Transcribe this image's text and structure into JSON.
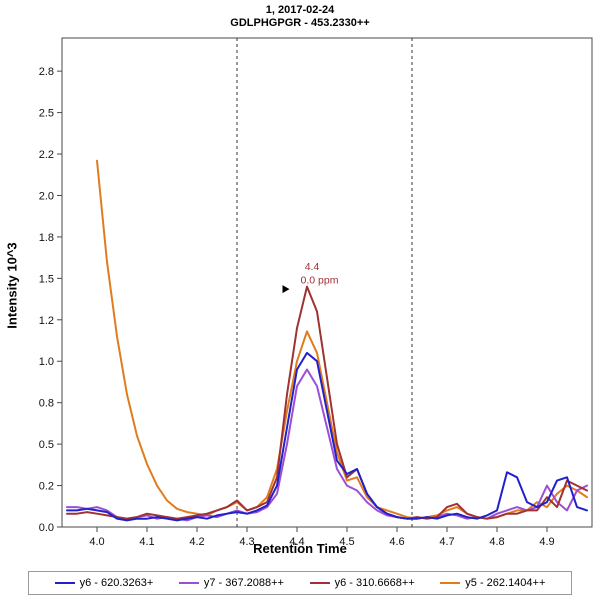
{
  "title_line1": "1, 2017-02-24",
  "title_line2": "GDLPHGPGR - 453.2330++",
  "chart_data": {
    "type": "line",
    "title": "1, 2017-02-24",
    "subtitle": "GDLPHGPGR - 453.2330++",
    "xlabel": "Retention Time",
    "ylabel": "Intensity 10^3",
    "xlim": [
      3.93,
      4.99
    ],
    "ylim": [
      0,
      2.95
    ],
    "grid": false,
    "legend_position": "bottom",
    "x_ticks": {
      "values": [
        4.0,
        4.1,
        4.2,
        4.3,
        4.4,
        4.5,
        4.6,
        4.7,
        4.8,
        4.9
      ],
      "labels": [
        "4.0",
        "4.1",
        "4.2",
        "4.3",
        "4.4",
        "4.5",
        "4.6",
        "4.7",
        "4.8",
        "4.9"
      ]
    },
    "y_ticks": {
      "values": [
        0,
        0.25,
        0.5,
        0.75,
        1.0,
        1.25,
        1.5,
        1.75,
        2.0,
        2.25,
        2.5,
        2.75
      ],
      "labels": [
        "0.0",
        "0.2",
        "0.5",
        "0.8",
        "1.0",
        "1.2",
        "1.5",
        "1.8",
        "2.0",
        "2.2",
        "2.5",
        "2.8"
      ]
    },
    "integration_boundaries": [
      4.28,
      4.63
    ],
    "x": [
      3.94,
      3.96,
      3.98,
      4.0,
      4.02,
      4.04,
      4.06,
      4.08,
      4.1,
      4.12,
      4.14,
      4.16,
      4.18,
      4.2,
      4.22,
      4.24,
      4.26,
      4.28,
      4.3,
      4.32,
      4.34,
      4.36,
      4.38,
      4.4,
      4.42,
      4.44,
      4.46,
      4.48,
      4.5,
      4.52,
      4.54,
      4.56,
      4.58,
      4.6,
      4.62,
      4.64,
      4.66,
      4.68,
      4.7,
      4.72,
      4.74,
      4.76,
      4.78,
      4.8,
      4.82,
      4.84,
      4.86,
      4.88,
      4.9,
      4.92,
      4.94,
      4.96,
      4.98
    ],
    "series": [
      {
        "name": "y6 - 620.3263+",
        "color": "#2121cc",
        "values": [
          0.1,
          0.1,
          0.11,
          0.1,
          0.09,
          0.05,
          0.04,
          0.05,
          0.05,
          0.06,
          0.05,
          0.04,
          0.05,
          0.06,
          0.05,
          0.07,
          0.08,
          0.09,
          0.08,
          0.1,
          0.13,
          0.25,
          0.6,
          0.95,
          1.05,
          1.0,
          0.7,
          0.4,
          0.32,
          0.35,
          0.2,
          0.12,
          0.08,
          0.06,
          0.05,
          0.05,
          0.06,
          0.05,
          0.07,
          0.08,
          0.06,
          0.05,
          0.07,
          0.1,
          0.33,
          0.3,
          0.15,
          0.12,
          0.15,
          0.28,
          0.3,
          0.12,
          0.1
        ]
      },
      {
        "name": "y7 - 367.2088++",
        "color": "#9b4fd6",
        "values": [
          0.12,
          0.12,
          0.11,
          0.12,
          0.1,
          0.06,
          0.05,
          0.06,
          0.07,
          0.05,
          0.06,
          0.05,
          0.04,
          0.06,
          0.07,
          0.06,
          0.08,
          0.1,
          0.08,
          0.09,
          0.12,
          0.2,
          0.5,
          0.85,
          0.95,
          0.85,
          0.6,
          0.35,
          0.25,
          0.22,
          0.15,
          0.1,
          0.07,
          0.06,
          0.05,
          0.06,
          0.05,
          0.06,
          0.08,
          0.07,
          0.05,
          0.06,
          0.05,
          0.08,
          0.1,
          0.12,
          0.1,
          0.12,
          0.25,
          0.15,
          0.1,
          0.22,
          0.25
        ]
      },
      {
        "name": "y6 - 310.6668++",
        "color": "#a03232",
        "values": [
          0.08,
          0.08,
          0.09,
          0.08,
          0.07,
          0.06,
          0.05,
          0.06,
          0.08,
          0.07,
          0.06,
          0.05,
          0.06,
          0.07,
          0.08,
          0.1,
          0.12,
          0.16,
          0.1,
          0.12,
          0.15,
          0.3,
          0.8,
          1.2,
          1.45,
          1.3,
          0.9,
          0.5,
          0.3,
          0.35,
          0.2,
          0.12,
          0.08,
          0.06,
          0.05,
          0.06,
          0.05,
          0.06,
          0.12,
          0.14,
          0.08,
          0.06,
          0.05,
          0.06,
          0.08,
          0.08,
          0.1,
          0.1,
          0.18,
          0.12,
          0.28,
          0.25,
          0.22
        ]
      },
      {
        "name": "y5 - 262.1404++",
        "color": "#e07c1e",
        "values": [
          null,
          null,
          null,
          2.21,
          1.6,
          1.15,
          0.8,
          0.55,
          0.38,
          0.25,
          0.16,
          0.11,
          0.09,
          0.08,
          0.07,
          0.1,
          0.12,
          0.15,
          0.1,
          0.12,
          0.18,
          0.35,
          0.7,
          1.0,
          1.18,
          1.05,
          0.75,
          0.45,
          0.28,
          0.3,
          0.18,
          0.12,
          0.1,
          0.08,
          0.06,
          0.05,
          0.06,
          0.07,
          0.1,
          0.12,
          0.08,
          0.06,
          0.05,
          0.06,
          0.08,
          0.1,
          0.1,
          0.15,
          0.12,
          0.2,
          0.25,
          0.22,
          0.18
        ]
      }
    ],
    "draw_order": [
      3,
      1,
      2,
      0
    ],
    "annotation": {
      "rt_label": "4.4",
      "ppm_label": "0.0 ppm",
      "x": 4.43,
      "peak_y": 1.45,
      "color": "#a03232"
    }
  }
}
